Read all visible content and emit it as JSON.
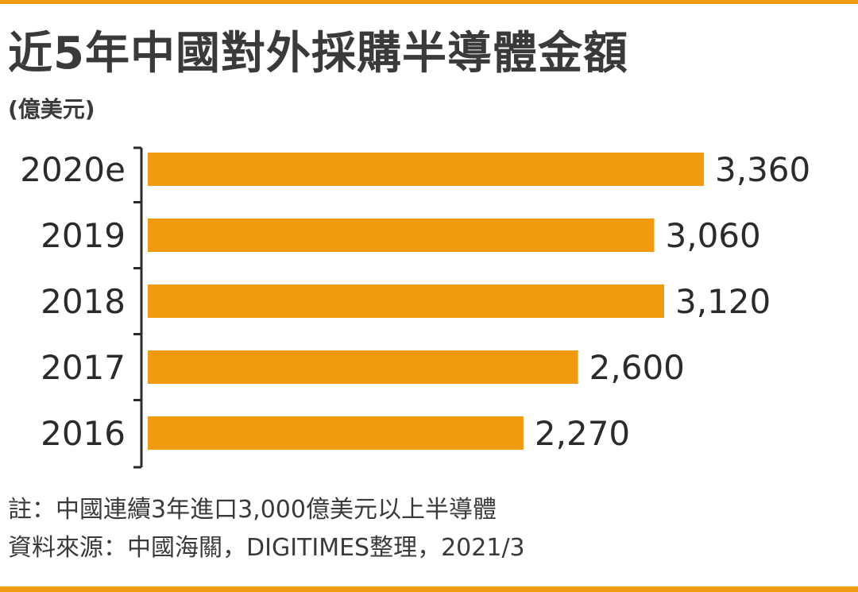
{
  "header": {
    "title": "近5年中國對外採購半導體金額",
    "unit": "(億美元)"
  },
  "notes": {
    "note": "註：中國連續3年進口3,000億美元以上半導體",
    "source": "資料來源：中國海關，DIGITIMES整理，2021/3"
  },
  "colors": {
    "bar": "#f29a0e",
    "accent_rule": "#f29a0e",
    "text": "#2b2b2b"
  },
  "chart_data": {
    "type": "bar",
    "orientation": "horizontal",
    "title": "近5年中國對外採購半導體金額",
    "unit": "(億美元)",
    "categories": [
      "2020e",
      "2019",
      "2018",
      "2017",
      "2016"
    ],
    "values": [
      3360,
      3060,
      3120,
      2600,
      2270
    ],
    "value_labels": [
      "3,360",
      "3,060",
      "3,120",
      "2,600",
      "2,270"
    ],
    "grid": false,
    "legend": "none"
  }
}
